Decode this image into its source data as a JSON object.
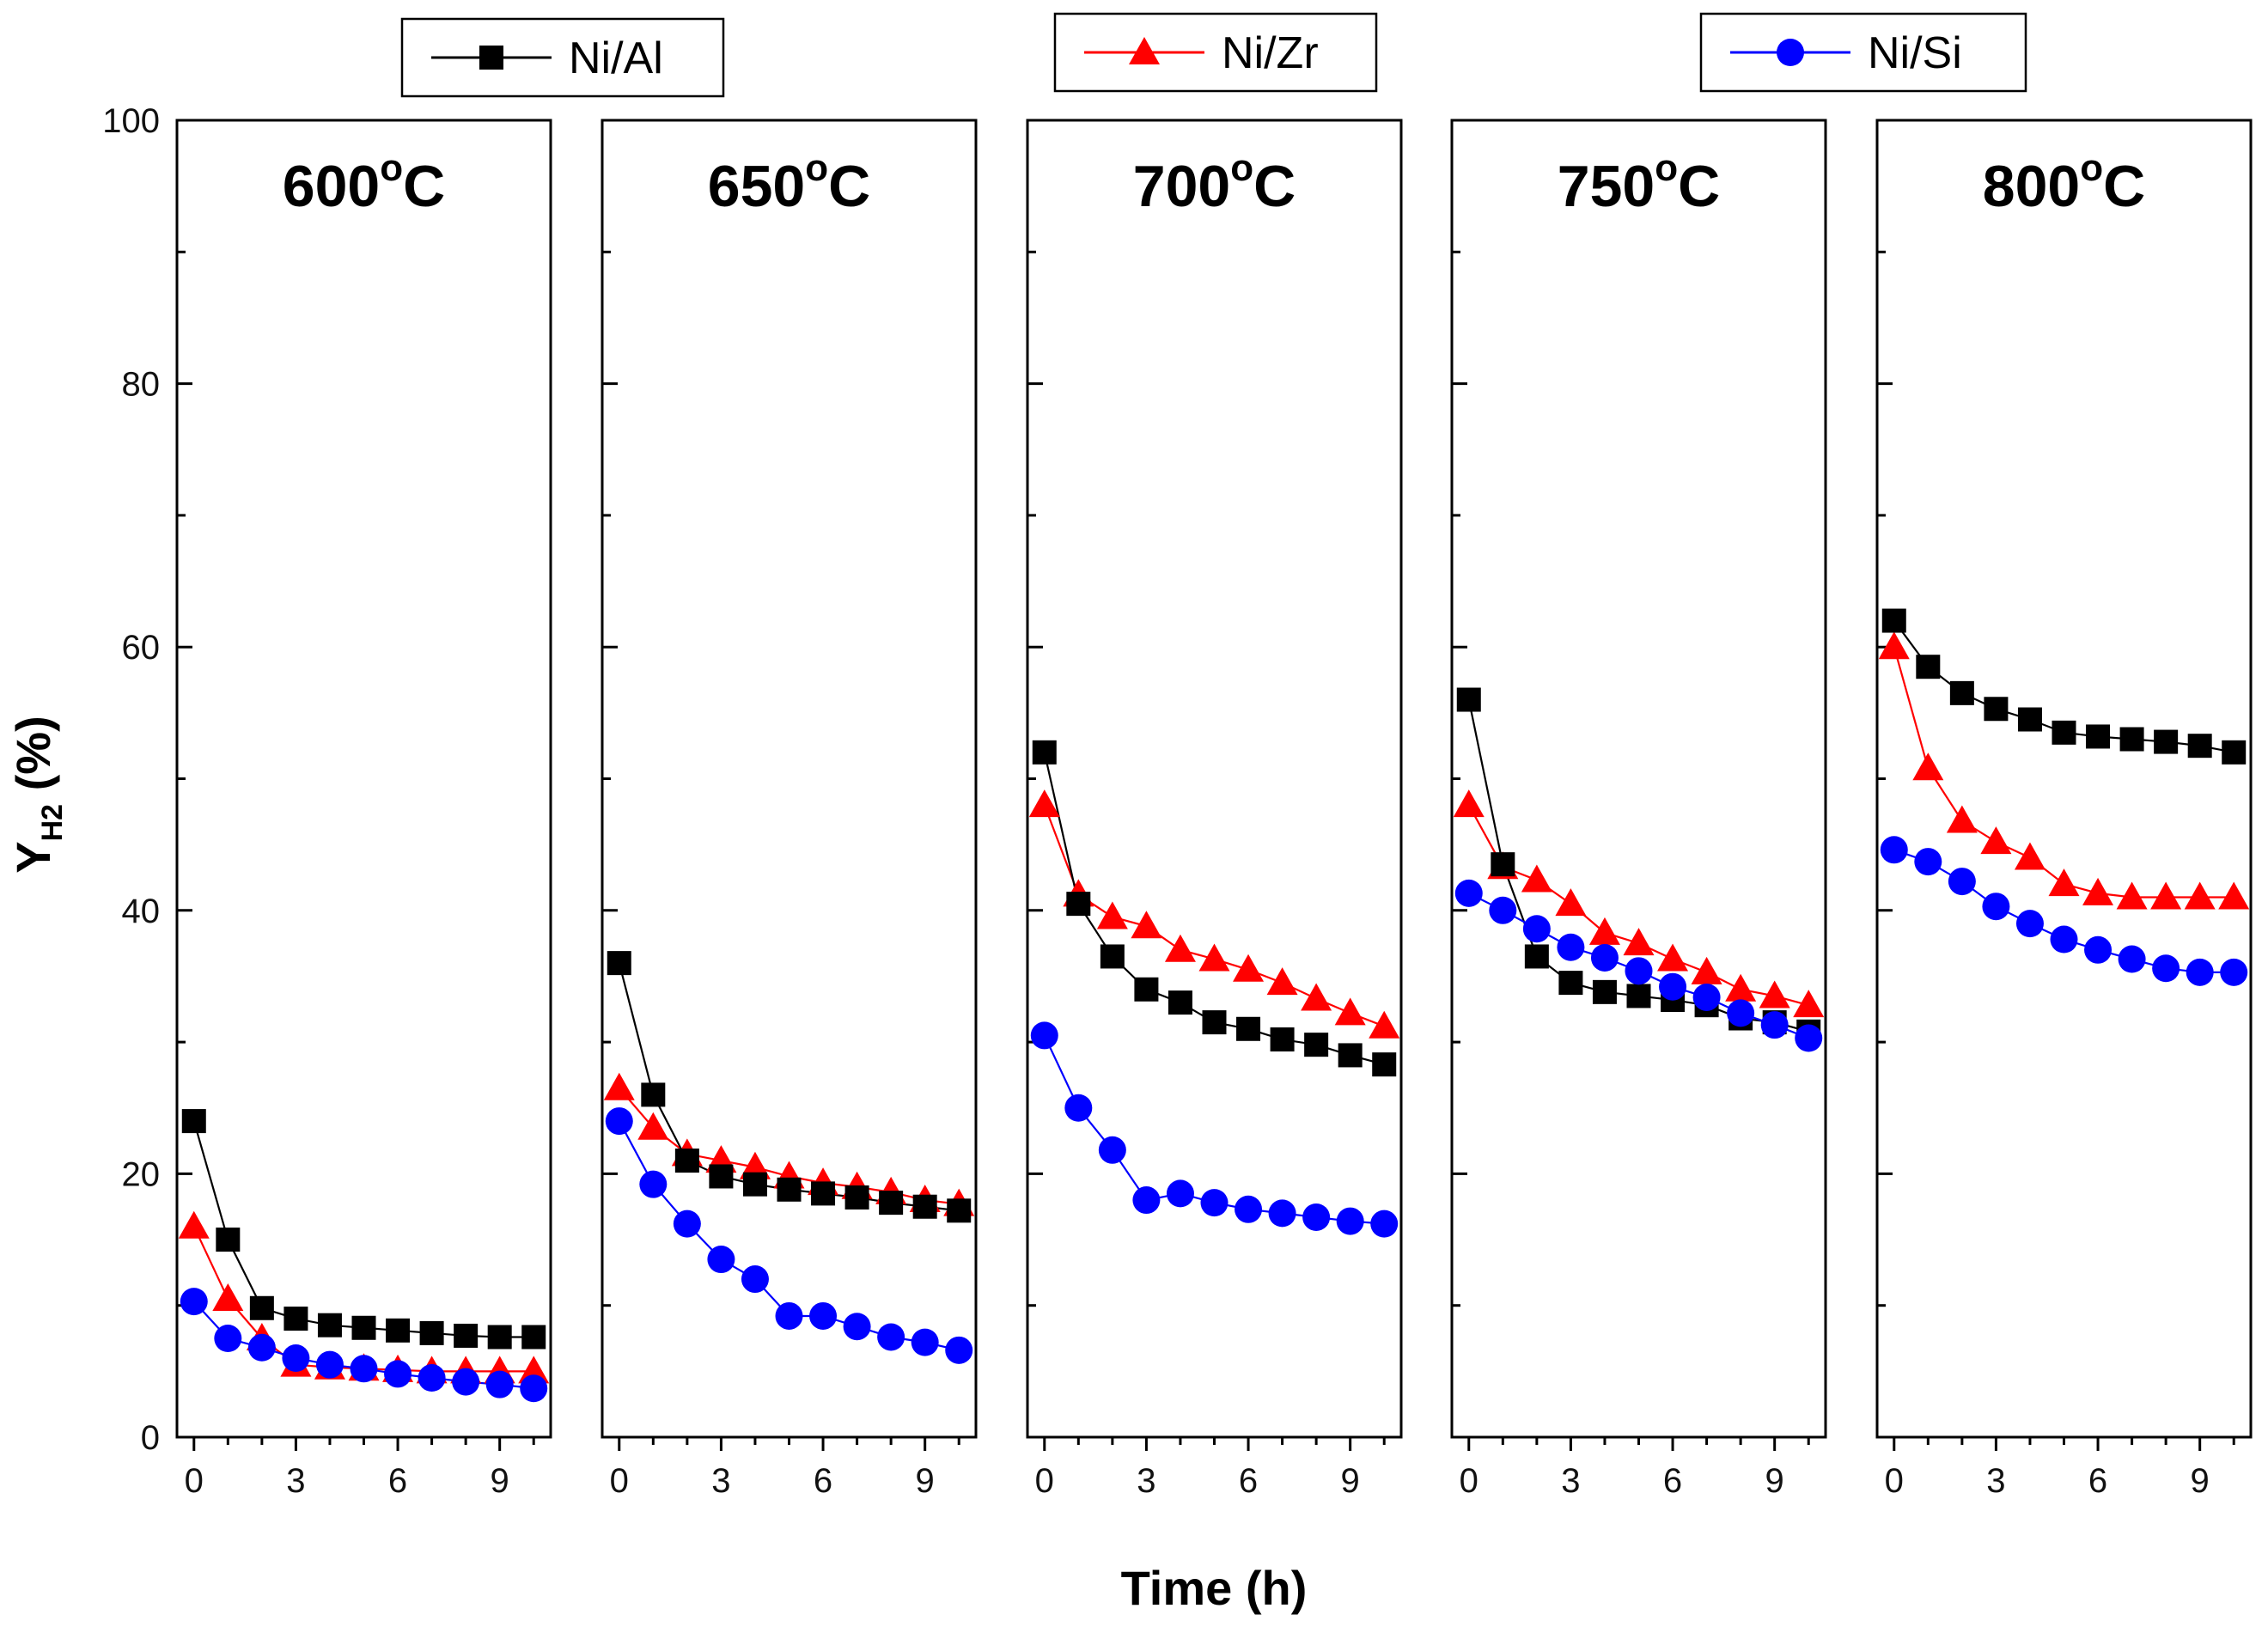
{
  "chart_data": {
    "type": "scatter",
    "xlabel": "Time (h)",
    "ylabel": "Y",
    "ylabel_subscript": "H2",
    "ylabel_unit": " (%)",
    "ylim": [
      0,
      100
    ],
    "yticks": [
      "0",
      "20",
      "40",
      "60",
      "80",
      "100"
    ],
    "xlim": [
      -0.5,
      10.5
    ],
    "xticks": [
      "0",
      "3",
      "6",
      "9"
    ],
    "x": [
      0,
      1,
      2,
      3,
      4,
      5,
      6,
      7,
      8,
      9,
      10
    ],
    "legend": [
      {
        "key": "ni_al",
        "label": "Ni/Al",
        "color": "#000000",
        "marker": "square"
      },
      {
        "key": "ni_zr",
        "label": "Ni/Zr",
        "color": "#ff0000",
        "marker": "triangle"
      },
      {
        "key": "ni_si",
        "label": "Ni/Si",
        "color": "#0000ff",
        "marker": "circle"
      }
    ],
    "panels": [
      {
        "temp": "600",
        "unit": "C",
        "degree": "o",
        "series": {
          "ni_al": [
            24,
            15,
            9.8,
            9,
            8.5,
            8.3,
            8.1,
            7.9,
            7.7,
            7.6,
            7.6
          ],
          "ni_zr": [
            16,
            10.5,
            7.5,
            5.5,
            5.3,
            5.2,
            5.1,
            5.0,
            5.0,
            5.0,
            5.0
          ],
          "ni_si": [
            10.3,
            7.5,
            6.8,
            6.0,
            5.5,
            5.2,
            4.8,
            4.5,
            4.2,
            4.0,
            3.7
          ]
        }
      },
      {
        "temp": "650",
        "unit": "C",
        "degree": "o",
        "series": {
          "ni_al": [
            36,
            26,
            21,
            19.8,
            19.2,
            18.8,
            18.5,
            18.2,
            17.8,
            17.5,
            17.2
          ],
          "ni_zr": [
            26.5,
            23.5,
            21.5,
            21,
            20.5,
            19.8,
            19.3,
            19,
            18.6,
            18,
            17.7
          ],
          "ni_si": [
            24,
            19.2,
            16.2,
            13.5,
            12,
            9.2,
            9.2,
            8.4,
            7.6,
            7.2,
            6.6
          ]
        }
      },
      {
        "temp": "700",
        "unit": "C",
        "degree": "o",
        "series": {
          "ni_al": [
            52,
            40.5,
            36.5,
            34,
            33,
            31.5,
            31,
            30.2,
            29.8,
            29,
            28.3
          ],
          "ni_zr": [
            48,
            41.2,
            39.5,
            38.8,
            37,
            36.3,
            35.5,
            34.5,
            33.3,
            32.2,
            31.2
          ],
          "ni_si": [
            30.5,
            25,
            21.8,
            18,
            18.5,
            17.8,
            17.3,
            17,
            16.7,
            16.4,
            16.2
          ]
        }
      },
      {
        "temp": "750",
        "unit": "C",
        "degree": "o",
        "series": {
          "ni_al": [
            56,
            43.5,
            36.5,
            34.5,
            33.8,
            33.5,
            33.2,
            32.8,
            31.8,
            31.5,
            30.8
          ],
          "ni_zr": [
            48,
            43.3,
            42.3,
            40.5,
            38.3,
            37.5,
            36.3,
            35.3,
            34,
            33.5,
            32.8
          ],
          "ni_si": [
            41.3,
            40,
            38.6,
            37.2,
            36.4,
            35.4,
            34.2,
            33.4,
            32.2,
            31.3,
            30.3
          ]
        }
      },
      {
        "temp": "800",
        "unit": "C",
        "degree": "o",
        "series": {
          "ni_al": [
            62,
            58.5,
            56.5,
            55.3,
            54.5,
            53.5,
            53.2,
            53,
            52.8,
            52.5,
            52
          ],
          "ni_zr": [
            60,
            50.8,
            46.8,
            45.2,
            44,
            42,
            41.3,
            41,
            41,
            41,
            41
          ],
          "ni_si": [
            44.6,
            43.7,
            42.2,
            40.3,
            39,
            37.8,
            37,
            36.3,
            35.6,
            35.3,
            35.3
          ]
        }
      }
    ]
  }
}
